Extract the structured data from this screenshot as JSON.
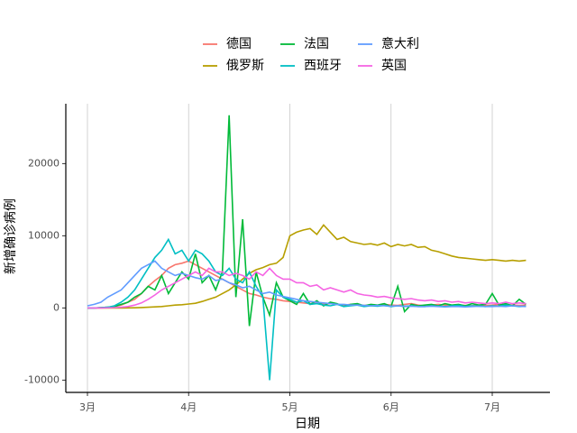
{
  "chart_data": {
    "type": "line",
    "x_label": "日期",
    "y_label": "新增确诊病例",
    "categories": [
      "3月",
      null,
      null,
      null,
      null,
      null,
      null,
      null,
      null,
      null,
      null,
      null,
      null,
      null,
      null,
      "4月",
      null,
      null,
      null,
      null,
      null,
      null,
      null,
      null,
      null,
      null,
      null,
      null,
      null,
      null,
      "5月",
      null,
      null,
      null,
      null,
      null,
      null,
      null,
      null,
      null,
      null,
      null,
      null,
      null,
      null,
      "6月",
      null,
      null,
      null,
      null,
      null,
      null,
      null,
      null,
      null,
      null,
      null,
      null,
      null,
      null,
      "7月",
      null,
      null,
      null,
      null,
      null
    ],
    "ylim": [
      -11700,
      28300
    ],
    "yticks": [
      -10000,
      0,
      10000,
      20000
    ],
    "grid": true,
    "series": [
      {
        "name": "德国",
        "color": "#F8766D",
        "values": [
          0,
          0,
          50,
          100,
          200,
          400,
          800,
          1200,
          2000,
          3000,
          3800,
          4500,
          5500,
          6000,
          6200,
          6500,
          6000,
          5500,
          5000,
          4500,
          4000,
          3500,
          3000,
          2500,
          2000,
          1800,
          1500,
          1300,
          1200,
          1000,
          900,
          800,
          700,
          600,
          700,
          500,
          600,
          500,
          400,
          500,
          400,
          350,
          400,
          300,
          500,
          400,
          350,
          500,
          600,
          400,
          300,
          400,
          500,
          400,
          300,
          400,
          350,
          300,
          400,
          350,
          400,
          500,
          400,
          400,
          350,
          400
        ]
      },
      {
        "name": "俄罗斯",
        "color": "#B79F00",
        "values": [
          0,
          0,
          0,
          0,
          0,
          0,
          10,
          30,
          60,
          100,
          150,
          200,
          300,
          400,
          450,
          550,
          650,
          900,
          1200,
          1500,
          2000,
          2500,
          3200,
          4000,
          4800,
          5300,
          5600,
          6000,
          6200,
          7000,
          10000,
          10500,
          10800,
          11000,
          10200,
          11500,
          10500,
          9500,
          9800,
          9200,
          9000,
          8800,
          8900,
          8700,
          9000,
          8500,
          8800,
          8600,
          8800,
          8400,
          8500,
          8000,
          7800,
          7500,
          7200,
          7000,
          6900,
          6800,
          6700,
          6600,
          6700,
          6600,
          6500,
          6600,
          6500,
          6600
        ]
      },
      {
        "name": "法国",
        "color": "#00BA38",
        "values": [
          0,
          0,
          50,
          100,
          200,
          500,
          800,
          1500,
          2000,
          3000,
          2500,
          4500,
          2000,
          3500,
          5000,
          4000,
          7500,
          3500,
          4500,
          2500,
          5000,
          26700,
          1500,
          12300,
          -2500,
          5000,
          1500,
          -1000,
          3500,
          1500,
          1000,
          500,
          2000,
          500,
          1000,
          300,
          800,
          600,
          200,
          500,
          600,
          300,
          500,
          400,
          600,
          200,
          3000,
          -500,
          500,
          300,
          400,
          500,
          300,
          600,
          400,
          500,
          300,
          600,
          400,
          500,
          2000,
          400,
          600,
          300,
          1200,
          500
        ]
      },
      {
        "name": "西班牙",
        "color": "#00BFC4",
        "values": [
          0,
          0,
          50,
          100,
          300,
          800,
          1500,
          2500,
          4000,
          5500,
          7000,
          8000,
          9500,
          7500,
          8000,
          6500,
          8000,
          7500,
          6500,
          5000,
          4500,
          5500,
          4000,
          3500,
          5000,
          3000,
          1500,
          -10000,
          2500,
          1500,
          1200,
          800,
          1000,
          500,
          600,
          400,
          300,
          500,
          200,
          300,
          400,
          200,
          300,
          250,
          350,
          200,
          300,
          250,
          300,
          200,
          200,
          300,
          250,
          200,
          300,
          350,
          200,
          300,
          250,
          200,
          300,
          250,
          400,
          300,
          200,
          250
        ]
      },
      {
        "name": "意大利",
        "color": "#619CFF",
        "values": [
          300,
          500,
          800,
          1500,
          2000,
          2500,
          3500,
          4500,
          5500,
          6000,
          6500,
          5500,
          5000,
          4500,
          4800,
          4500,
          4200,
          4000,
          4500,
          3800,
          4000,
          3500,
          3200,
          2800,
          3000,
          2500,
          2000,
          2200,
          1800,
          1600,
          1400,
          1200,
          1000,
          900,
          800,
          700,
          600,
          500,
          500,
          400,
          400,
          350,
          300,
          350,
          300,
          250,
          300,
          200,
          250,
          200,
          200,
          250,
          200,
          150,
          200,
          200,
          150,
          200,
          250,
          200,
          200,
          250,
          200,
          300,
          250,
          200
        ]
      },
      {
        "name": "英国",
        "color": "#F564E3",
        "values": [
          0,
          0,
          0,
          20,
          50,
          100,
          200,
          400,
          700,
          1200,
          1800,
          2500,
          3000,
          3500,
          4000,
          4500,
          5000,
          4500,
          5500,
          5000,
          5000,
          4500,
          4800,
          4500,
          4000,
          5000,
          4500,
          5500,
          4500,
          4000,
          4000,
          3500,
          3500,
          3000,
          3200,
          2500,
          2800,
          2500,
          2200,
          2500,
          2000,
          1800,
          1700,
          1500,
          1600,
          1400,
          1300,
          1200,
          1300,
          1100,
          1000,
          1100,
          900,
          1000,
          800,
          900,
          700,
          800,
          700,
          600,
          700,
          600,
          800,
          600,
          700,
          600
        ]
      }
    ]
  }
}
